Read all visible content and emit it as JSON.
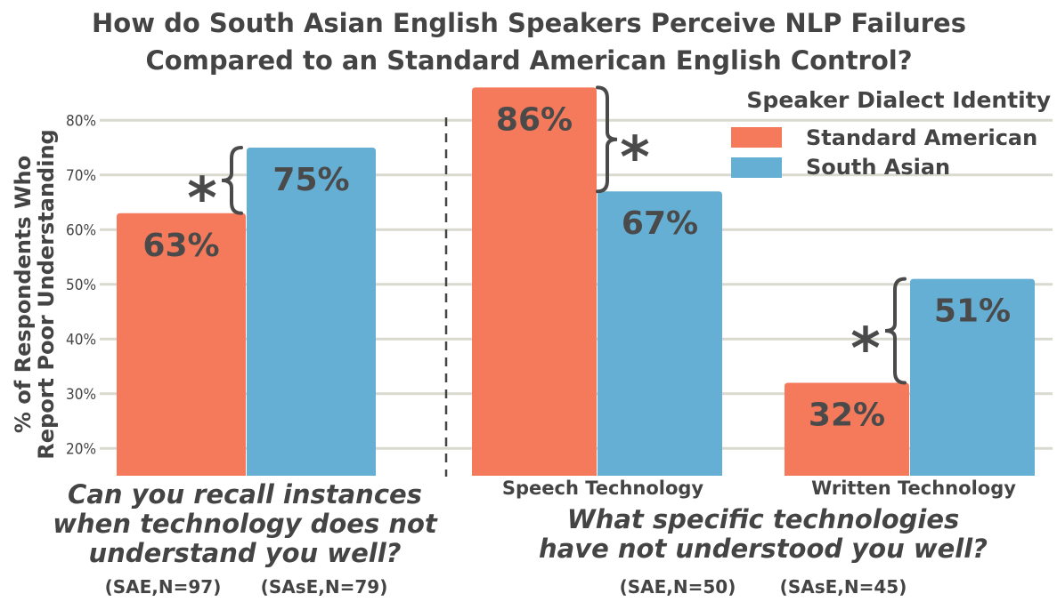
{
  "chart_data": {
    "type": "bar",
    "title": "How do South Asian English Speakers Perceive NLP Failures Compared to an Standard American English Control?",
    "title_lines": [
      "How do South Asian English Speakers Perceive NLP Failures",
      "Compared to an Standard American English Control?"
    ],
    "ylabel": "% of Respondents Who Report Poor Understanding",
    "ylabel_lines": [
      "% of Respondents Who",
      "Report Poor Understanding"
    ],
    "ylim": [
      15,
      88
    ],
    "yticks": [
      20,
      30,
      40,
      50,
      60,
      70,
      80
    ],
    "ytick_labels": [
      "20%",
      "30%",
      "40%",
      "50%",
      "60%",
      "70%",
      "80%"
    ],
    "grid": true,
    "legend_position": "top-right",
    "legend_title": "Speaker Dialect Identity",
    "series": [
      {
        "name": "Standard American",
        "color": "#f47a5b"
      },
      {
        "name": "South Asian",
        "color": "#65afd4"
      }
    ],
    "groups": [
      {
        "category": "",
        "values": [
          63,
          75
        ],
        "value_labels": [
          "63%",
          "75%"
        ],
        "significance": "*"
      },
      {
        "category": "Speech Technology",
        "values": [
          86,
          67
        ],
        "value_labels": [
          "86%",
          "67%"
        ],
        "significance": "*"
      },
      {
        "category": "Written Technology",
        "values": [
          32,
          51
        ],
        "value_labels": [
          "32%",
          "51%"
        ],
        "significance": "*"
      }
    ],
    "panels": [
      {
        "question_lines": [
          "Can you recall instances",
          "when technology does not",
          "understand you well?"
        ],
        "sample_sizes": [
          "(SAE,N=97)",
          "(SAsE,N=79)"
        ]
      },
      {
        "question_lines": [
          "What specific technologies",
          "have not understood you well?"
        ],
        "sample_sizes": [
          "(SAE,N=50)",
          "(SAsE,N=45)"
        ]
      }
    ]
  }
}
